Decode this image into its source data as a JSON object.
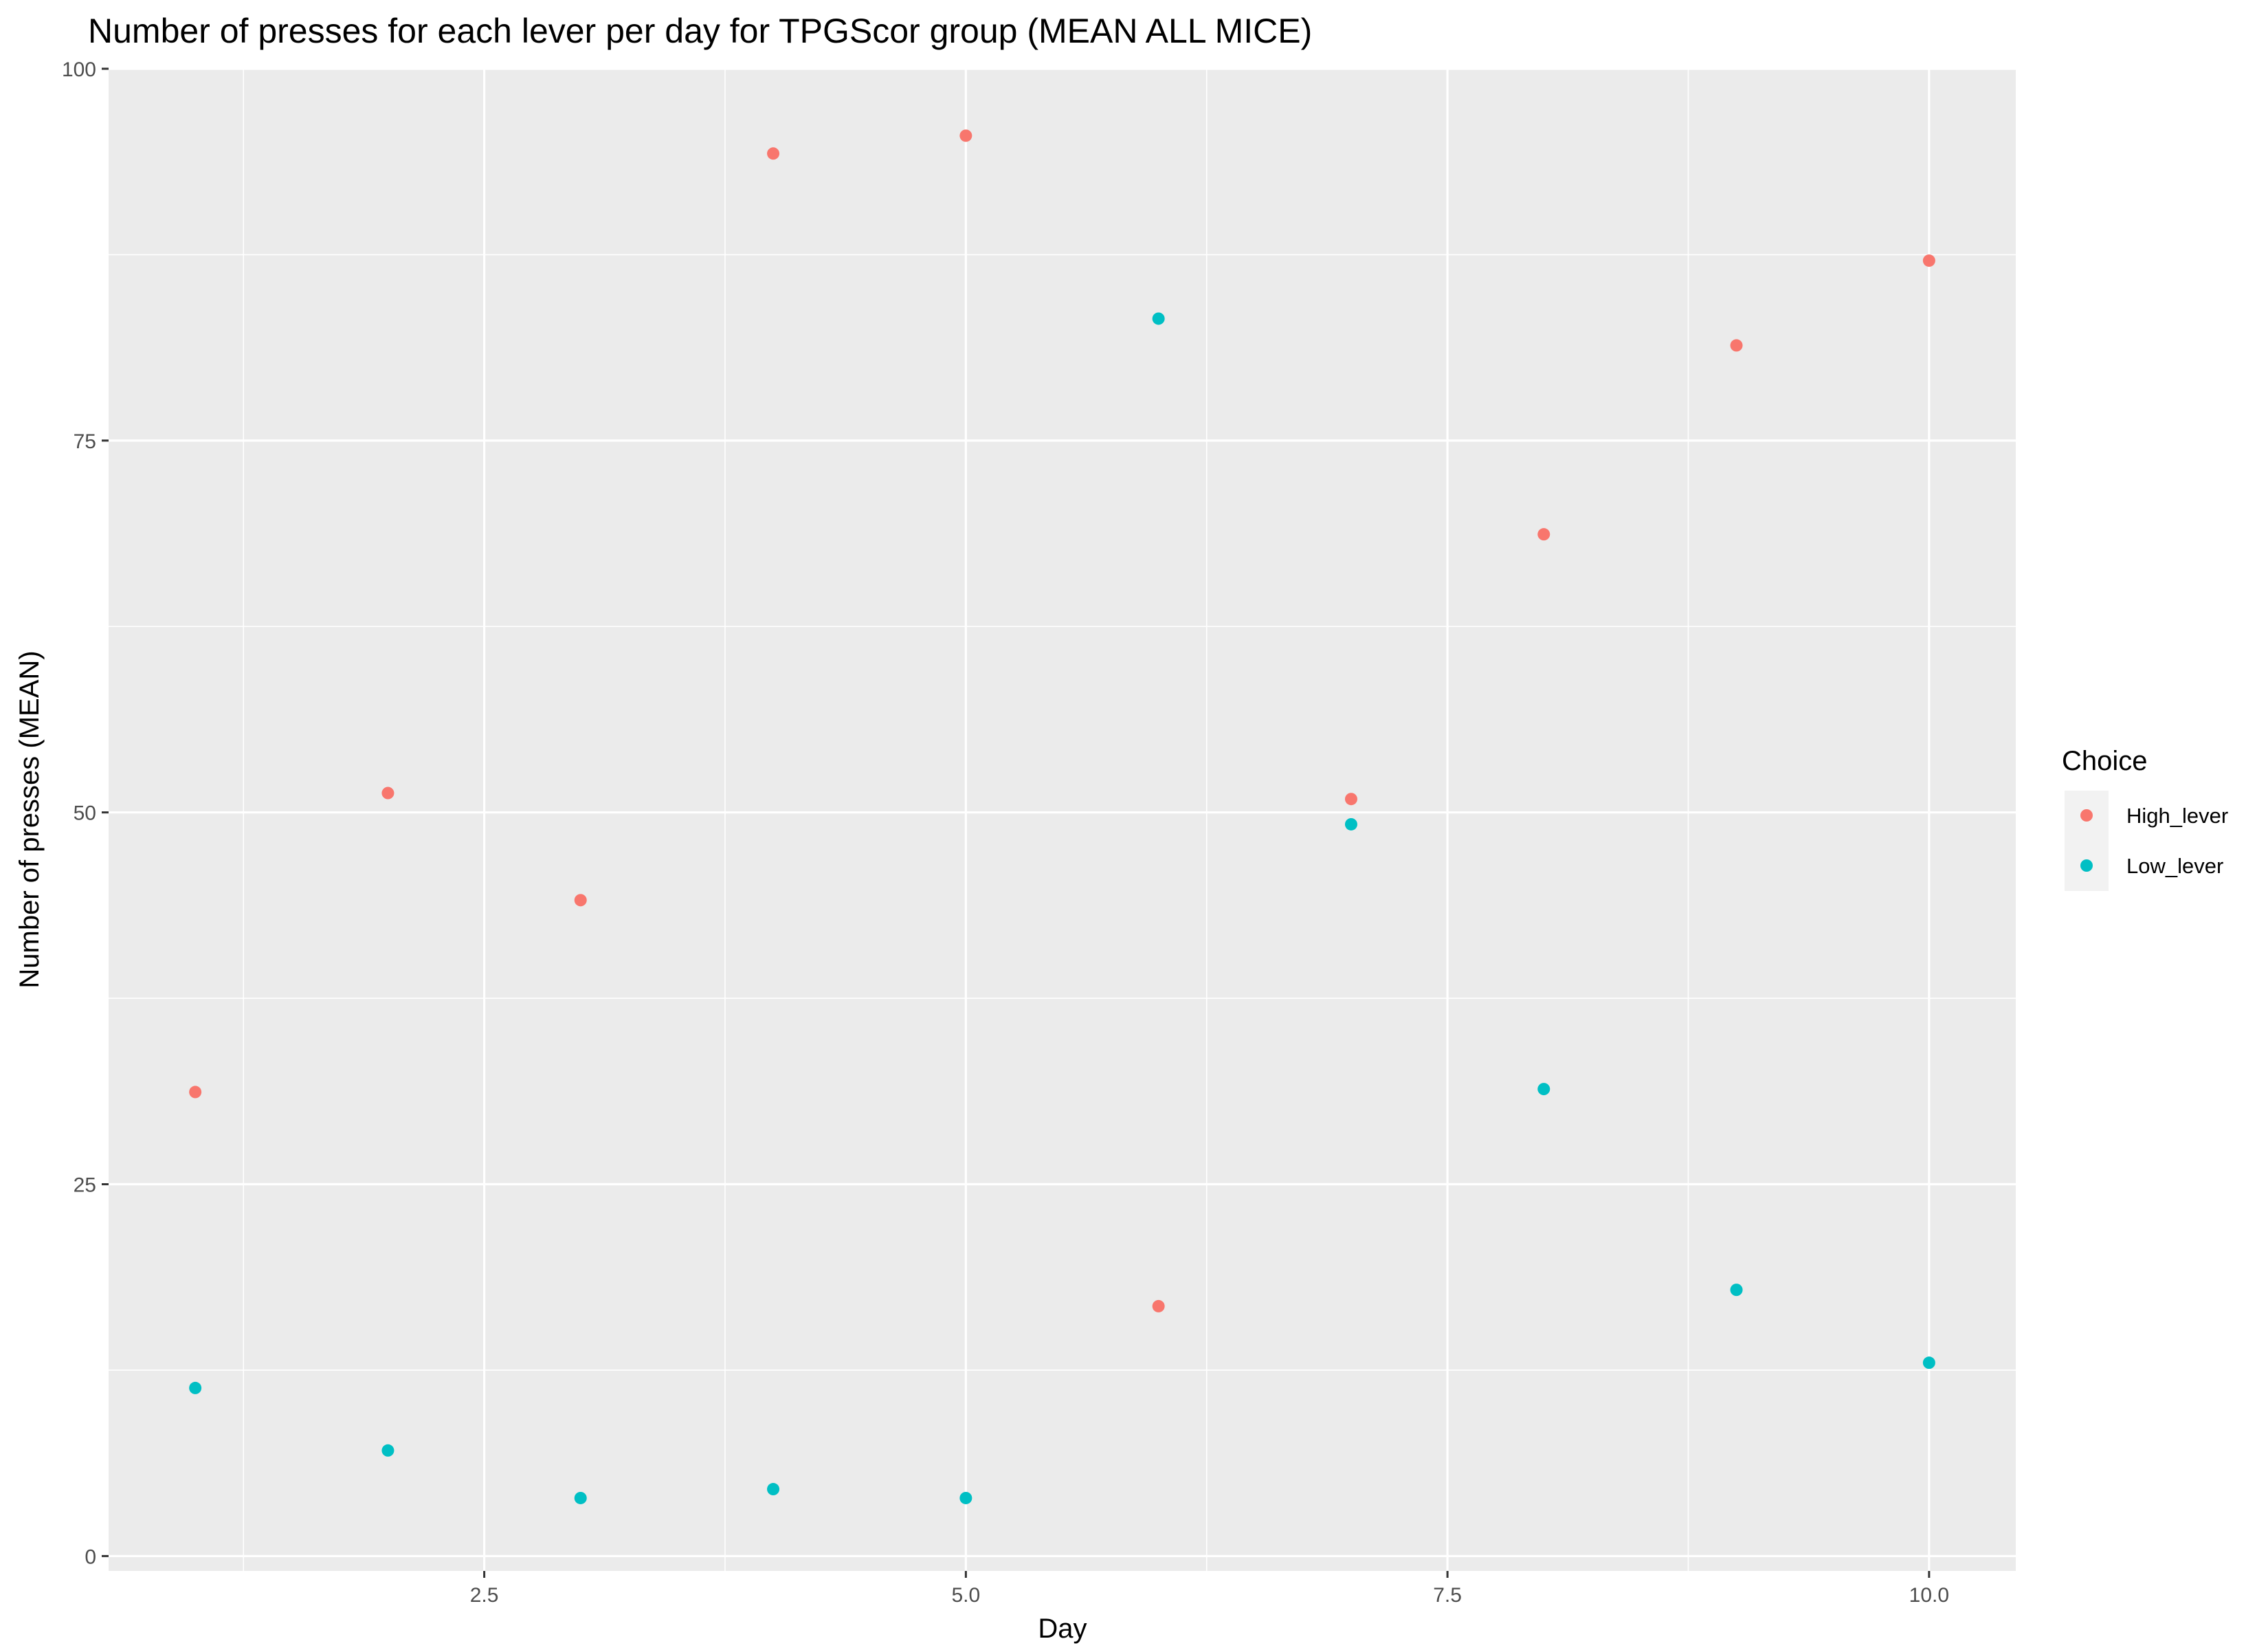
{
  "chart_data": {
    "type": "scatter",
    "title": "Number of presses for each lever per day for TPGScor group (MEAN ALL MICE)",
    "xlabel": "Day",
    "ylabel": "Number of presses (MEAN)",
    "xlim": [
      0.55,
      10.45
    ],
    "ylim": [
      -1,
      100
    ],
    "x_ticks": [
      2.5,
      5.0,
      7.5,
      10.0
    ],
    "x_tick_labels": [
      "2.5",
      "5.0",
      "7.5",
      "10.0"
    ],
    "y_ticks": [
      0,
      25,
      50,
      75,
      100
    ],
    "y_tick_labels": [
      "0",
      "25",
      "50",
      "75",
      "100"
    ],
    "grid": true,
    "legend": {
      "title": "Choice",
      "position": "right"
    },
    "series": [
      {
        "name": "High_lever",
        "color": "#F8766D",
        "x": [
          1,
          2,
          3,
          4,
          5,
          6,
          7,
          8,
          9,
          10
        ],
        "y": [
          31.2,
          51.3,
          44.1,
          94.3,
          95.5,
          16.8,
          50.9,
          68.7,
          81.4,
          87.1
        ]
      },
      {
        "name": "Low_lever",
        "color": "#00BFC4",
        "x": [
          1,
          2,
          3,
          4,
          5,
          6,
          7,
          8,
          9,
          10
        ],
        "y": [
          11.3,
          7.1,
          3.9,
          4.5,
          3.9,
          83.2,
          49.2,
          31.4,
          17.9,
          13.0
        ]
      }
    ]
  }
}
